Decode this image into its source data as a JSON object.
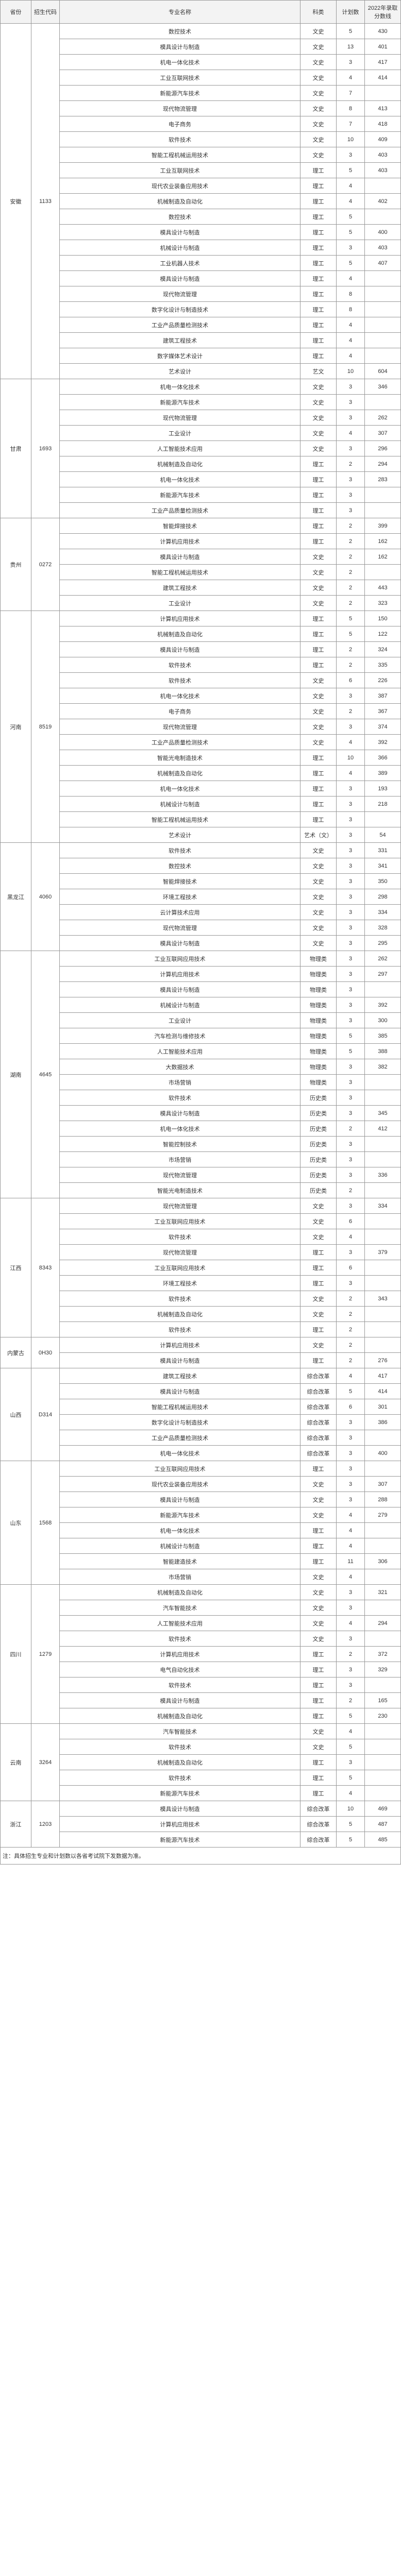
{
  "headers": {
    "province": "省份",
    "code": "招生代码",
    "major": "专业名称",
    "subject": "科类",
    "plan": "计划数",
    "score": "2022年录取分数线"
  },
  "footnote": "注：具体招生专业和计划数以各省考试院下发数据为准。",
  "provinces": [
    {
      "name": "安徽",
      "code": "1133",
      "rows": [
        {
          "major": "数控技术",
          "subject": "文史",
          "plan": "5",
          "score": "430"
        },
        {
          "major": "模具设计与制造",
          "subject": "文史",
          "plan": "13",
          "score": "401"
        },
        {
          "major": "机电一体化技术",
          "subject": "文史",
          "plan": "3",
          "score": "417"
        },
        {
          "major": "工业互联网技术",
          "subject": "文史",
          "plan": "4",
          "score": "414"
        },
        {
          "major": "新能源汽车技术",
          "subject": "文史",
          "plan": "7",
          "score": ""
        },
        {
          "major": "现代物流管理",
          "subject": "文史",
          "plan": "8",
          "score": "413"
        },
        {
          "major": "电子商务",
          "subject": "文史",
          "plan": "7",
          "score": "418"
        },
        {
          "major": "软件技术",
          "subject": "文史",
          "plan": "10",
          "score": "409"
        },
        {
          "major": "智能工程机械运用技术",
          "subject": "文史",
          "plan": "3",
          "score": "403"
        },
        {
          "major": "工业互联网技术",
          "subject": "理工",
          "plan": "5",
          "score": "403"
        },
        {
          "major": "现代农业装备应用技术",
          "subject": "理工",
          "plan": "4",
          "score": ""
        },
        {
          "major": "机械制造及自动化",
          "subject": "理工",
          "plan": "4",
          "score": "402"
        },
        {
          "major": "数控技术",
          "subject": "理工",
          "plan": "5",
          "score": ""
        },
        {
          "major": "模具设计与制造",
          "subject": "理工",
          "plan": "5",
          "score": "400"
        },
        {
          "major": "机械设计与制造",
          "subject": "理工",
          "plan": "3",
          "score": "403"
        },
        {
          "major": "工业机器人技术",
          "subject": "理工",
          "plan": "5",
          "score": "407"
        },
        {
          "major": "模具设计与制造",
          "subject": "理工",
          "plan": "4",
          "score": ""
        },
        {
          "major": "现代物流管理",
          "subject": "理工",
          "plan": "8",
          "score": ""
        },
        {
          "major": "数字化设计与制造技术",
          "subject": "理工",
          "plan": "8",
          "score": ""
        },
        {
          "major": "工业产品质量检测技术",
          "subject": "理工",
          "plan": "4",
          "score": ""
        },
        {
          "major": "建筑工程技术",
          "subject": "理工",
          "plan": "4",
          "score": ""
        },
        {
          "major": "数字媒体艺术设计",
          "subject": "理工",
          "plan": "4",
          "score": ""
        },
        {
          "major": "艺术设计",
          "subject": "艺文",
          "plan": "10",
          "score": "604"
        }
      ]
    },
    {
      "name": "甘肃",
      "code": "1693",
      "rows": [
        {
          "major": "机电一体化技术",
          "subject": "文史",
          "plan": "3",
          "score": "346"
        },
        {
          "major": "新能源汽车技术",
          "subject": "文史",
          "plan": "3",
          "score": ""
        },
        {
          "major": "现代物流管理",
          "subject": "文史",
          "plan": "3",
          "score": "262"
        },
        {
          "major": "工业设计",
          "subject": "文史",
          "plan": "4",
          "score": "307"
        },
        {
          "major": "人工智能技术应用",
          "subject": "文史",
          "plan": "3",
          "score": "296"
        },
        {
          "major": "机械制造及自动化",
          "subject": "理工",
          "plan": "2",
          "score": "294"
        },
        {
          "major": "机电一体化技术",
          "subject": "理工",
          "plan": "3",
          "score": "283"
        },
        {
          "major": "新能源汽车技术",
          "subject": "理工",
          "plan": "3",
          "score": ""
        },
        {
          "major": "工业产品质量检测技术",
          "subject": "理工",
          "plan": "3",
          "score": ""
        }
      ]
    },
    {
      "name": "贵州",
      "code": "0272",
      "rows": [
        {
          "major": "智能焊接技术",
          "subject": "理工",
          "plan": "2",
          "score": "399"
        },
        {
          "major": "计算机应用技术",
          "subject": "理工",
          "plan": "2",
          "score": "162"
        },
        {
          "major": "模具设计与制造",
          "subject": "文史",
          "plan": "2",
          "score": "162"
        },
        {
          "major": "智能工程机械运用技术",
          "subject": "文史",
          "plan": "2",
          "score": ""
        },
        {
          "major": "建筑工程技术",
          "subject": "文史",
          "plan": "2",
          "score": "443"
        },
        {
          "major": "工业设计",
          "subject": "文史",
          "plan": "2",
          "score": "323"
        }
      ]
    },
    {
      "name": "河南",
      "code": "8519",
      "rows": [
        {
          "major": "计算机应用技术",
          "subject": "理工",
          "plan": "5",
          "score": "150"
        },
        {
          "major": "机械制造及自动化",
          "subject": "理工",
          "plan": "5",
          "score": "122"
        },
        {
          "major": "模具设计与制造",
          "subject": "理工",
          "plan": "2",
          "score": "324"
        },
        {
          "major": "软件技术",
          "subject": "理工",
          "plan": "2",
          "score": "335"
        },
        {
          "major": "软件技术",
          "subject": "文史",
          "plan": "6",
          "score": "226"
        },
        {
          "major": "机电一体化技术",
          "subject": "文史",
          "plan": "3",
          "score": "387"
        },
        {
          "major": "电子商务",
          "subject": "文史",
          "plan": "2",
          "score": "367"
        },
        {
          "major": "现代物流管理",
          "subject": "文史",
          "plan": "3",
          "score": "374"
        },
        {
          "major": "工业产品质量检测技术",
          "subject": "文史",
          "plan": "4",
          "score": "392"
        },
        {
          "major": "智能光电制造技术",
          "subject": "理工",
          "plan": "10",
          "score": "366"
        },
        {
          "major": "机械制造及自动化",
          "subject": "理工",
          "plan": "4",
          "score": "389"
        },
        {
          "major": "机电一体化技术",
          "subject": "理工",
          "plan": "3",
          "score": "193"
        },
        {
          "major": "机械设计与制造",
          "subject": "理工",
          "plan": "3",
          "score": "218"
        },
        {
          "major": "智能工程机械运用技术",
          "subject": "理工",
          "plan": "3",
          "score": ""
        },
        {
          "major": "艺术设计",
          "subject": "艺术（文）",
          "plan": "3",
          "score": "54"
        }
      ]
    },
    {
      "name": "黑龙江",
      "code": "4060",
      "rows": [
        {
          "major": "软件技术",
          "subject": "文史",
          "plan": "3",
          "score": "331"
        },
        {
          "major": "数控技术",
          "subject": "文史",
          "plan": "3",
          "score": "341"
        },
        {
          "major": "智能焊接技术",
          "subject": "文史",
          "plan": "3",
          "score": "350"
        },
        {
          "major": "环境工程技术",
          "subject": "文史",
          "plan": "3",
          "score": "298"
        },
        {
          "major": "云计算技术应用",
          "subject": "文史",
          "plan": "3",
          "score": "334"
        },
        {
          "major": "现代物流管理",
          "subject": "文史",
          "plan": "3",
          "score": "328"
        },
        {
          "major": "模具设计与制造",
          "subject": "文史",
          "plan": "3",
          "score": "295"
        }
      ]
    },
    {
      "name": "湖南",
      "code": "4645",
      "rows": [
        {
          "major": "工业互联网应用技术",
          "subject": "物理类",
          "plan": "3",
          "score": "262"
        },
        {
          "major": "计算机应用技术",
          "subject": "物理类",
          "plan": "3",
          "score": "297"
        },
        {
          "major": "模具设计与制造",
          "subject": "物理类",
          "plan": "3",
          "score": ""
        },
        {
          "major": "机械设计与制造",
          "subject": "物理类",
          "plan": "3",
          "score": "392"
        },
        {
          "major": "工业设计",
          "subject": "物理类",
          "plan": "3",
          "score": "300"
        },
        {
          "major": "汽车检测与维修技术",
          "subject": "物理类",
          "plan": "5",
          "score": "385"
        },
        {
          "major": "人工智能技术应用",
          "subject": "物理类",
          "plan": "5",
          "score": "388"
        },
        {
          "major": "大数据技术",
          "subject": "物理类",
          "plan": "3",
          "score": "382"
        },
        {
          "major": "市场营销",
          "subject": "物理类",
          "plan": "3",
          "score": ""
        },
        {
          "major": "软件技术",
          "subject": "历史类",
          "plan": "3",
          "score": ""
        },
        {
          "major": "模具设计与制造",
          "subject": "历史类",
          "plan": "3",
          "score": "345"
        },
        {
          "major": "机电一体化技术",
          "subject": "历史类",
          "plan": "2",
          "score": "412"
        },
        {
          "major": "智能控制技术",
          "subject": "历史类",
          "plan": "3",
          "score": ""
        },
        {
          "major": "市场营销",
          "subject": "历史类",
          "plan": "3",
          "score": ""
        },
        {
          "major": "现代物流管理",
          "subject": "历史类",
          "plan": "3",
          "score": "336"
        },
        {
          "major": "智能光电制造技术",
          "subject": "历史类",
          "plan": "2",
          "score": ""
        }
      ]
    },
    {
      "name": "江西",
      "code": "8343",
      "rows": [
        {
          "major": "现代物流管理",
          "subject": "文史",
          "plan": "3",
          "score": "334"
        },
        {
          "major": "工业互联网应用技术",
          "subject": "文史",
          "plan": "6",
          "score": ""
        },
        {
          "major": "软件技术",
          "subject": "文史",
          "plan": "4",
          "score": ""
        },
        {
          "major": "现代物流管理",
          "subject": "理工",
          "plan": "3",
          "score": "379"
        },
        {
          "major": "工业互联网应用技术",
          "subject": "理工",
          "plan": "6",
          "score": ""
        },
        {
          "major": "环境工程技术",
          "subject": "理工",
          "plan": "3",
          "score": ""
        },
        {
          "major": "软件技术",
          "subject": "文史",
          "plan": "2",
          "score": "343"
        },
        {
          "major": "机械制造及自动化",
          "subject": "文史",
          "plan": "2",
          "score": ""
        },
        {
          "major": "软件技术",
          "subject": "理工",
          "plan": "2",
          "score": ""
        }
      ]
    },
    {
      "name": "内蒙古",
      "code": "0H30",
      "rows": [
        {
          "major": "计算机应用技术",
          "subject": "文史",
          "plan": "2",
          "score": ""
        },
        {
          "major": "模具设计与制造",
          "subject": "理工",
          "plan": "2",
          "score": "276"
        }
      ]
    },
    {
      "name": "山西",
      "code": "D314",
      "rows": [
        {
          "major": "建筑工程技术",
          "subject": "综合改革",
          "plan": "4",
          "score": "417"
        },
        {
          "major": "模具设计与制造",
          "subject": "综合改革",
          "plan": "5",
          "score": "414"
        },
        {
          "major": "智能工程机械运用技术",
          "subject": "综合改革",
          "plan": "6",
          "score": "301"
        },
        {
          "major": "数字化设计与制造技术",
          "subject": "综合改革",
          "plan": "3",
          "score": "386"
        },
        {
          "major": "工业产品质量检测技术",
          "subject": "综合改革",
          "plan": "3",
          "score": ""
        },
        {
          "major": "机电一体化技术",
          "subject": "综合改革",
          "plan": "3",
          "score": "400"
        }
      ]
    },
    {
      "name": "山东",
      "code": "1568",
      "rows": [
        {
          "major": "工业互联网应用技术",
          "subject": "理工",
          "plan": "3",
          "score": ""
        },
        {
          "major": "现代农业装备应用技术",
          "subject": "文史",
          "plan": "3",
          "score": "307"
        },
        {
          "major": "模具设计与制造",
          "subject": "文史",
          "plan": "3",
          "score": "288"
        },
        {
          "major": "新能源汽车技术",
          "subject": "文史",
          "plan": "4",
          "score": "279"
        },
        {
          "major": "机电一体化技术",
          "subject": "理工",
          "plan": "4",
          "score": ""
        },
        {
          "major": "机械设计与制造",
          "subject": "理工",
          "plan": "4",
          "score": ""
        },
        {
          "major": "智能建造技术",
          "subject": "理工",
          "plan": "11",
          "score": "306"
        },
        {
          "major": "市场营销",
          "subject": "文史",
          "plan": "4",
          "score": ""
        }
      ]
    },
    {
      "name": "四川",
      "code": "1279",
      "rows": [
        {
          "major": "机械制造及自动化",
          "subject": "文史",
          "plan": "3",
          "score": "321"
        },
        {
          "major": "汽车智能技术",
          "subject": "文史",
          "plan": "3",
          "score": ""
        },
        {
          "major": "人工智能技术应用",
          "subject": "文史",
          "plan": "4",
          "score": "294"
        },
        {
          "major": "软件技术",
          "subject": "文史",
          "plan": "3",
          "score": ""
        },
        {
          "major": "计算机应用技术",
          "subject": "理工",
          "plan": "2",
          "score": "372"
        },
        {
          "major": "电气自动化技术",
          "subject": "理工",
          "plan": "3",
          "score": "329"
        },
        {
          "major": "软件技术",
          "subject": "理工",
          "plan": "3",
          "score": ""
        },
        {
          "major": "模具设计与制造",
          "subject": "理工",
          "plan": "2",
          "score": "165"
        },
        {
          "major": "机械制造及自动化",
          "subject": "理工",
          "plan": "5",
          "score": "230"
        }
      ]
    },
    {
      "name": "云南",
      "code": "3264",
      "rows": [
        {
          "major": "汽车智能技术",
          "subject": "文史",
          "plan": "4",
          "score": ""
        },
        {
          "major": "软件技术",
          "subject": "文史",
          "plan": "5",
          "score": ""
        },
        {
          "major": "机械制造及自动化",
          "subject": "理工",
          "plan": "3",
          "score": ""
        },
        {
          "major": "软件技术",
          "subject": "理工",
          "plan": "5",
          "score": ""
        },
        {
          "major": "新能源汽车技术",
          "subject": "理工",
          "plan": "4",
          "score": ""
        }
      ]
    },
    {
      "name": "浙江",
      "code": "1203",
      "rows": [
        {
          "major": "模具设计与制造",
          "subject": "综合改革",
          "plan": "10",
          "score": "469"
        },
        {
          "major": "计算机应用技术",
          "subject": "综合改革",
          "plan": "5",
          "score": "487"
        },
        {
          "major": "新能源汽车技术",
          "subject": "综合改革",
          "plan": "5",
          "score": "485"
        }
      ]
    }
  ]
}
